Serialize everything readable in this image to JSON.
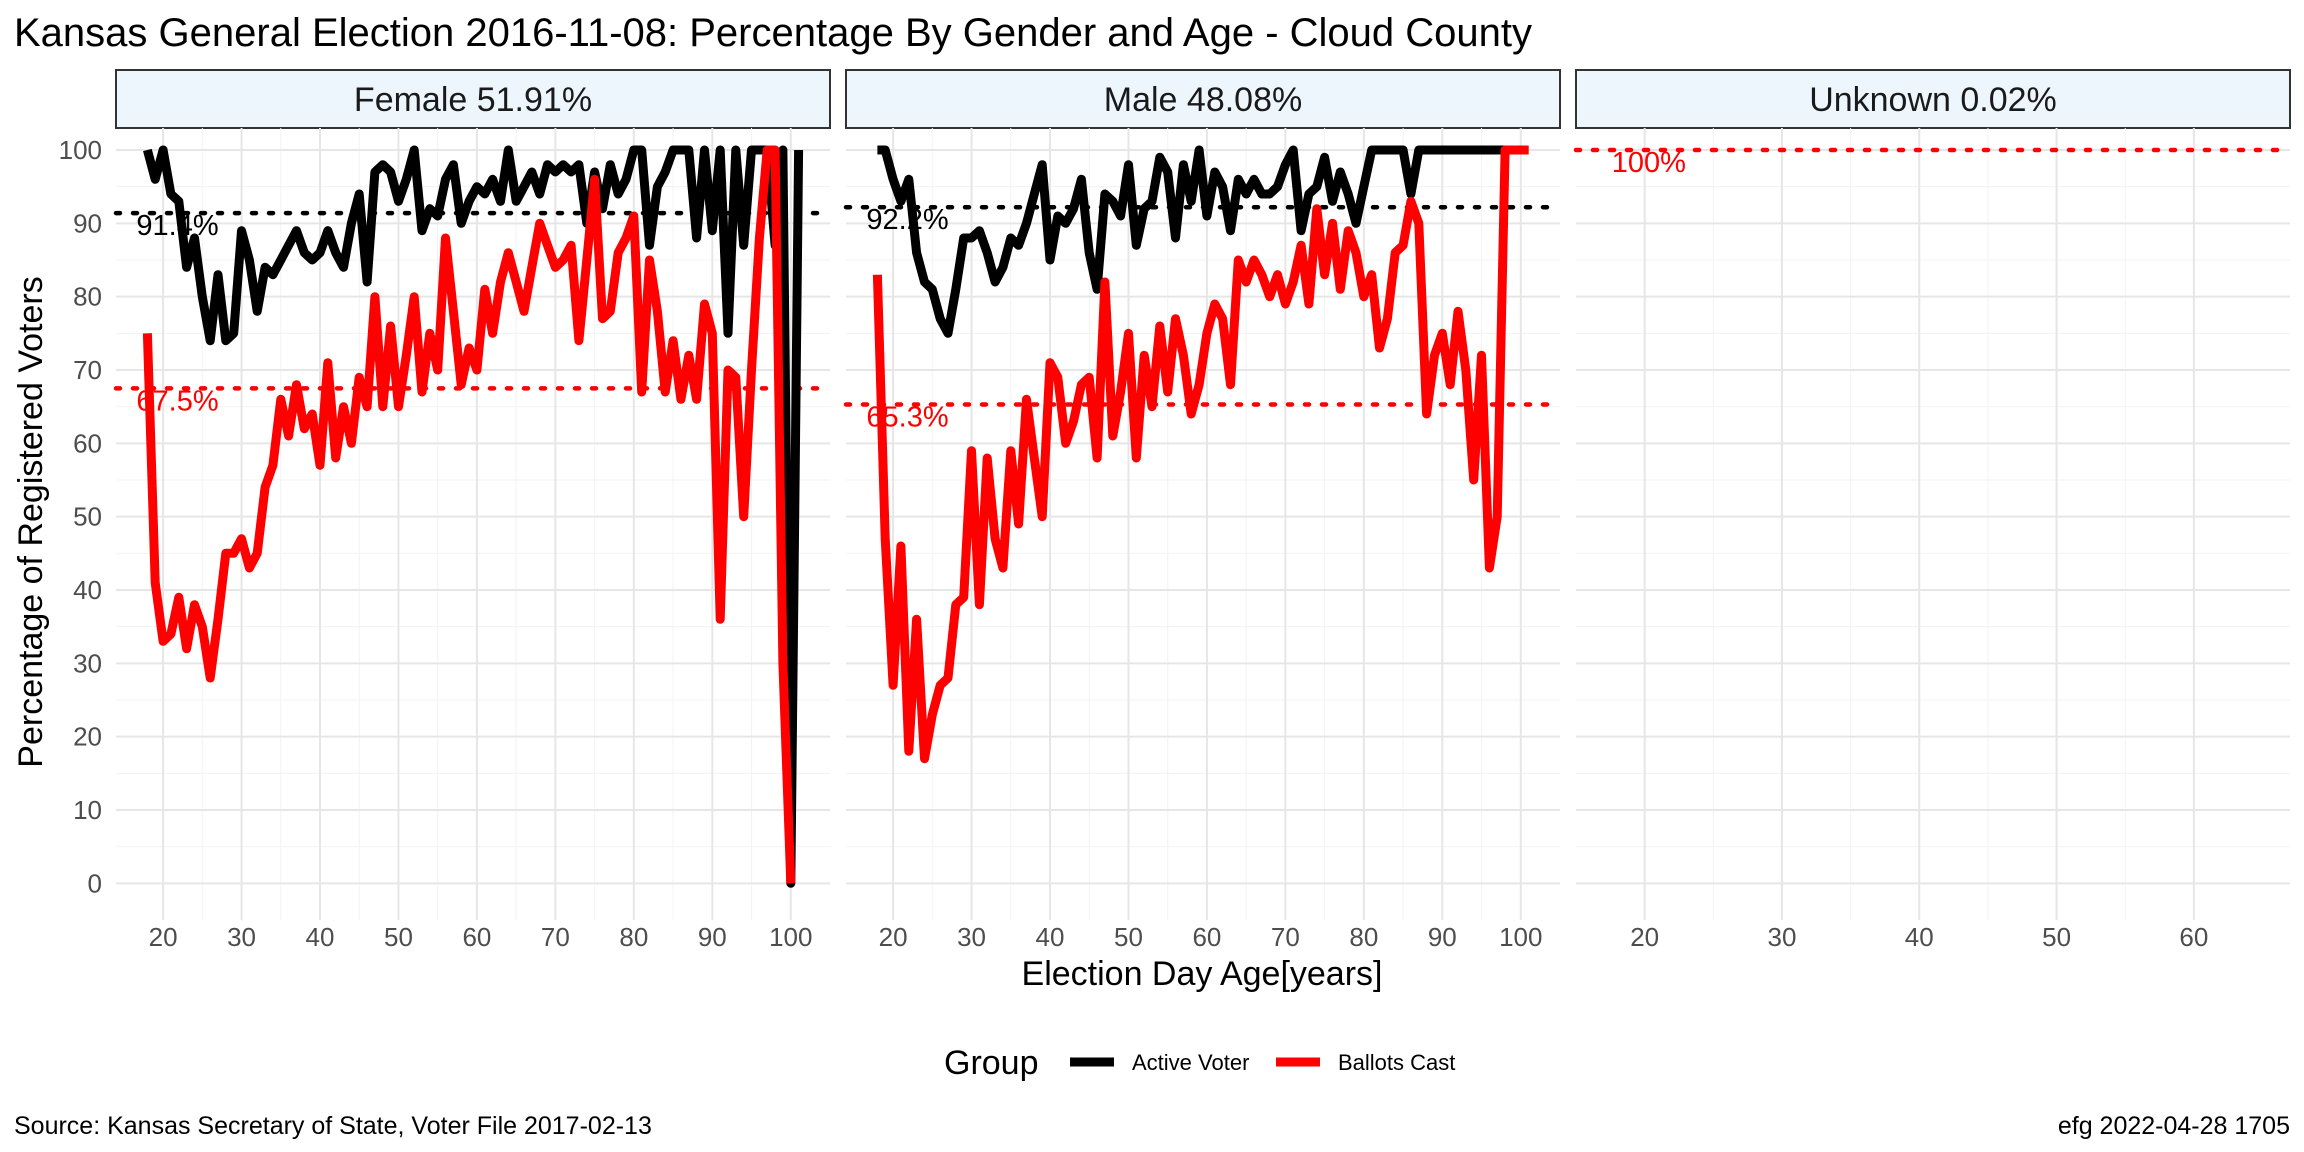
{
  "chart_data": {
    "type": "line",
    "title": "Kansas General Election 2016-11-08:  Percentage By Gender and Age - Cloud County",
    "xlabel": "Election Day Age[years]",
    "ylabel": "Percentage of Registered Voters",
    "ylim": [
      -5,
      103
    ],
    "y_ticks": [
      0,
      10,
      20,
      30,
      40,
      50,
      60,
      70,
      80,
      90,
      100
    ],
    "grid": true,
    "legend": {
      "title": "Group",
      "position": "bottom",
      "items": [
        {
          "label": "Active Voter",
          "color": "#000000"
        },
        {
          "label": "Ballots Cast",
          "color": "#ff0000"
        }
      ]
    },
    "caption_left": "Source:  Kansas Secretary of State, Voter File  2017-02-13",
    "caption_right": "efg 2022-04-28 1705",
    "panels": [
      {
        "label": "Female 51.91%",
        "xlim": [
          14,
          105
        ],
        "x_ticks": [
          20,
          30,
          40,
          50,
          60,
          70,
          80,
          90,
          100
        ],
        "ref_lines": [
          {
            "value": 91.4,
            "label": "91.4%",
            "color": "#000000"
          },
          {
            "value": 67.5,
            "label": "67.5%",
            "color": "#ff0000"
          }
        ],
        "series": [
          {
            "name": "Active Voter",
            "color": "#000000",
            "x": [
              18,
              19,
              20,
              21,
              22,
              23,
              24,
              25,
              26,
              27,
              28,
              29,
              30,
              31,
              32,
              33,
              34,
              35,
              36,
              37,
              38,
              39,
              40,
              41,
              42,
              43,
              44,
              45,
              46,
              47,
              48,
              49,
              50,
              51,
              52,
              53,
              54,
              55,
              56,
              57,
              58,
              59,
              60,
              61,
              62,
              63,
              64,
              65,
              66,
              67,
              68,
              69,
              70,
              71,
              72,
              73,
              74,
              75,
              76,
              77,
              78,
              79,
              80,
              81,
              82,
              83,
              84,
              85,
              86,
              87,
              88,
              89,
              90,
              91,
              92,
              93,
              94,
              95,
              96,
              97,
              98,
              99,
              100,
              101
            ],
            "values": [
              100,
              96,
              100,
              94,
              93,
              84,
              88,
              80,
              74,
              83,
              74,
              75,
              89,
              85,
              78,
              84,
              83,
              85,
              87,
              89,
              86,
              85,
              86,
              89,
              86,
              84,
              90,
              94,
              82,
              97,
              98,
              97,
              93,
              96,
              100,
              89,
              92,
              91,
              96,
              98,
              90,
              93,
              95,
              94,
              96,
              93,
              100,
              93,
              95,
              97,
              94,
              98,
              97,
              98,
              97,
              98,
              90,
              97,
              92,
              98,
              94,
              96,
              100,
              100,
              87,
              95,
              97,
              100,
              100,
              100,
              88,
              100,
              89,
              100,
              75,
              100,
              87,
              100,
              100,
              100,
              87,
              100,
              0,
              100
            ]
          },
          {
            "name": "Ballots Cast",
            "color": "#ff0000",
            "x": [
              18,
              19,
              20,
              21,
              22,
              23,
              24,
              25,
              26,
              27,
              28,
              29,
              30,
              31,
              32,
              33,
              34,
              35,
              36,
              37,
              38,
              39,
              40,
              41,
              42,
              43,
              44,
              45,
              46,
              47,
              48,
              49,
              50,
              51,
              52,
              53,
              54,
              55,
              56,
              57,
              58,
              59,
              60,
              61,
              62,
              63,
              64,
              65,
              66,
              67,
              68,
              69,
              70,
              71,
              72,
              73,
              74,
              75,
              76,
              77,
              78,
              79,
              80,
              81,
              82,
              83,
              84,
              85,
              86,
              87,
              88,
              89,
              90,
              91,
              92,
              93,
              94,
              95,
              96,
              97,
              98,
              99,
              100
            ],
            "values": [
              75,
              41,
              33,
              34,
              39,
              32,
              38,
              35,
              28,
              36,
              45,
              45,
              47,
              43,
              45,
              54,
              57,
              66,
              61,
              68,
              62,
              64,
              57,
              71,
              58,
              65,
              60,
              69,
              65,
              80,
              65,
              76,
              65,
              72,
              80,
              67,
              75,
              70,
              88,
              78,
              68,
              73,
              70,
              81,
              75,
              82,
              86,
              82,
              78,
              84,
              90,
              87,
              84,
              85,
              87,
              74,
              85,
              96,
              77,
              78,
              86,
              88,
              91,
              67,
              85,
              78,
              67,
              74,
              66,
              72,
              66,
              79,
              75,
              36,
              70,
              69,
              50,
              70,
              88,
              100,
              100,
              30,
              0
            ]
          }
        ]
      },
      {
        "label": "Male 48.08%",
        "xlim": [
          14,
          105
        ],
        "x_ticks": [
          20,
          30,
          40,
          50,
          60,
          70,
          80,
          90,
          100
        ],
        "ref_lines": [
          {
            "value": 92.2,
            "label": "92.2%",
            "color": "#000000"
          },
          {
            "value": 65.3,
            "label": "65.3%",
            "color": "#ff0000"
          }
        ],
        "series": [
          {
            "name": "Active Voter",
            "color": "#000000",
            "x": [
              18,
              19,
              20,
              21,
              22,
              23,
              24,
              25,
              26,
              27,
              28,
              29,
              30,
              31,
              32,
              33,
              34,
              35,
              36,
              37,
              38,
              39,
              40,
              41,
              42,
              43,
              44,
              45,
              46,
              47,
              48,
              49,
              50,
              51,
              52,
              53,
              54,
              55,
              56,
              57,
              58,
              59,
              60,
              61,
              62,
              63,
              64,
              65,
              66,
              67,
              68,
              69,
              70,
              71,
              72,
              73,
              74,
              75,
              76,
              77,
              78,
              79,
              80,
              81,
              82,
              83,
              84,
              85,
              86,
              87,
              88,
              89,
              90,
              91,
              92,
              93,
              94,
              95,
              96,
              97,
              98,
              99,
              100,
              101
            ],
            "values": [
              100,
              100,
              96,
              93,
              96,
              86,
              82,
              81,
              77,
              75,
              81,
              88,
              88,
              89,
              86,
              82,
              84,
              88,
              87,
              90,
              94,
              98,
              85,
              91,
              90,
              92,
              96,
              86,
              81,
              94,
              93,
              91,
              98,
              87,
              92,
              93,
              99,
              97,
              88,
              98,
              93,
              100,
              91,
              97,
              95,
              89,
              96,
              94,
              96,
              94,
              94,
              95,
              98,
              100,
              89,
              94,
              95,
              99,
              93,
              97,
              94,
              90,
              95,
              100,
              100,
              100,
              100,
              100,
              94,
              100,
              100,
              100,
              100,
              100,
              100,
              100,
              100,
              100,
              100,
              100,
              100,
              100,
              100,
              100
            ]
          },
          {
            "name": "Ballots Cast",
            "color": "#ff0000",
            "x": [
              18,
              19,
              20,
              21,
              22,
              23,
              24,
              25,
              26,
              27,
              28,
              29,
              30,
              31,
              32,
              33,
              34,
              35,
              36,
              37,
              38,
              39,
              40,
              41,
              42,
              43,
              44,
              45,
              46,
              47,
              48,
              49,
              50,
              51,
              52,
              53,
              54,
              55,
              56,
              57,
              58,
              59,
              60,
              61,
              62,
              63,
              64,
              65,
              66,
              67,
              68,
              69,
              70,
              71,
              72,
              73,
              74,
              75,
              76,
              77,
              78,
              79,
              80,
              81,
              82,
              83,
              84,
              85,
              86,
              87,
              88,
              89,
              90,
              91,
              92,
              93,
              94,
              95,
              96,
              97,
              98,
              99,
              100,
              101
            ],
            "values": [
              83,
              47,
              27,
              46,
              18,
              36,
              17,
              23,
              27,
              28,
              38,
              39,
              59,
              38,
              58,
              47,
              43,
              59,
              49,
              66,
              58,
              50,
              71,
              69,
              60,
              63,
              68,
              69,
              58,
              82,
              61,
              67,
              75,
              58,
              72,
              65,
              76,
              67,
              77,
              72,
              64,
              68,
              75,
              79,
              77,
              68,
              85,
              82,
              85,
              83,
              80,
              83,
              79,
              82,
              87,
              79,
              92,
              83,
              90,
              81,
              89,
              86,
              80,
              83,
              73,
              77,
              86,
              87,
              93,
              90,
              64,
              72,
              75,
              68,
              78,
              70,
              55,
              72,
              43,
              50,
              100,
              100,
              100,
              100
            ]
          }
        ]
      },
      {
        "label": "Unknown 0.02%",
        "xlim": [
          15,
          67
        ],
        "x_ticks": [
          20,
          30,
          40,
          50,
          60
        ],
        "ref_lines": [
          {
            "value": 100,
            "label": "100%",
            "color": "#ff0000"
          }
        ],
        "series": []
      }
    ]
  }
}
